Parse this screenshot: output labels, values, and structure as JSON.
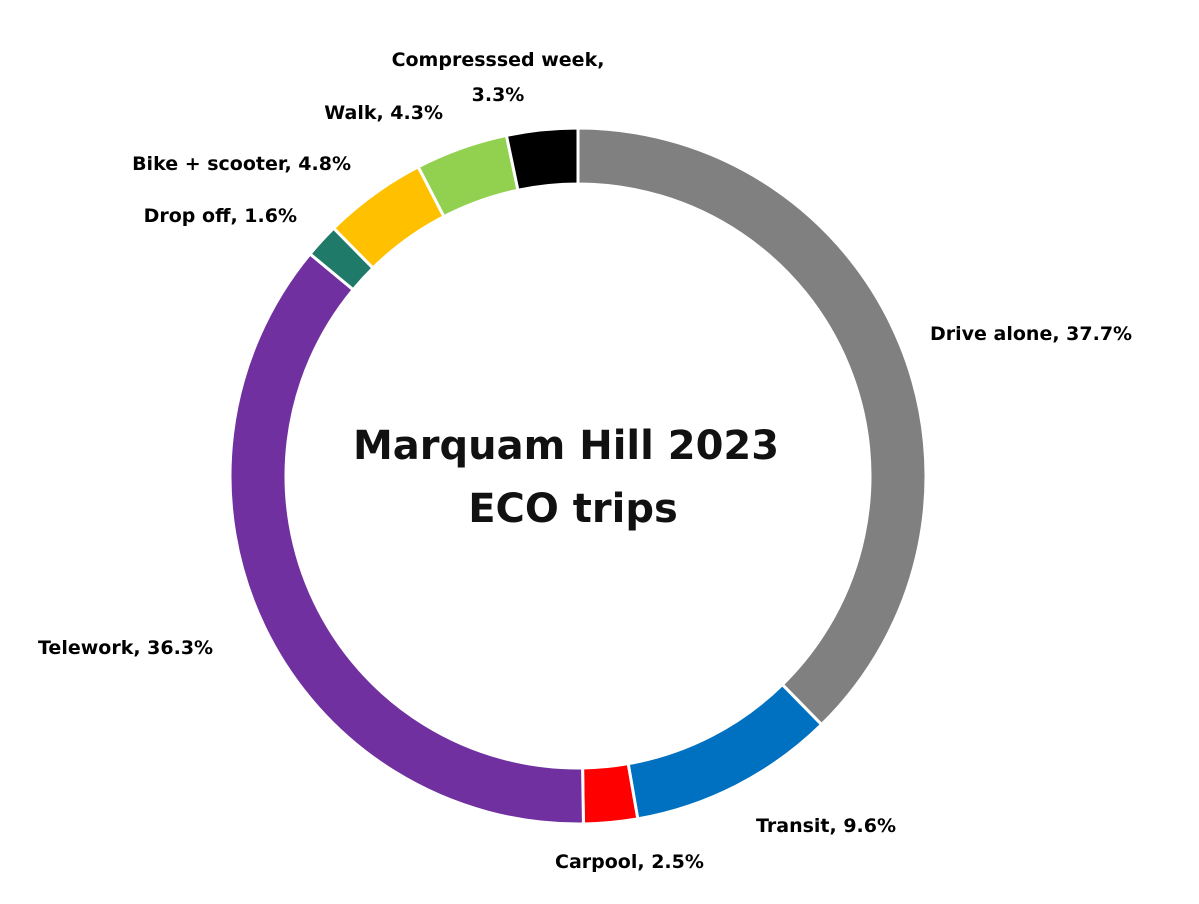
{
  "chart_data": {
    "type": "pie",
    "donut": true,
    "title_lines": [
      "Marquam Hill 2023",
      "ECO trips"
    ],
    "slices": [
      {
        "name": "Drive alone",
        "label_lines": [
          "Drive alone, 37.7%"
        ],
        "value": 37.7,
        "color": "#808080"
      },
      {
        "name": "Transit",
        "label_lines": [
          "Transit, 9.6%"
        ],
        "value": 9.6,
        "color": "#0070C0"
      },
      {
        "name": "Carpool",
        "label_lines": [
          "Carpool, 2.5%"
        ],
        "value": 2.5,
        "color": "#FF0000"
      },
      {
        "name": "Telework",
        "label_lines": [
          "Telework, 36.3%"
        ],
        "value": 36.3,
        "color": "#7030A0"
      },
      {
        "name": "Drop off",
        "label_lines": [
          "Drop off, 1.6%"
        ],
        "value": 1.6,
        "color": "#1F7A6A"
      },
      {
        "name": "Bike + scooter",
        "label_lines": [
          "Bike + scooter, 4.8%"
        ],
        "value": 4.8,
        "color": "#FFC000"
      },
      {
        "name": "Walk",
        "label_lines": [
          "Walk, 4.3%"
        ],
        "value": 4.3,
        "color": "#92D050"
      },
      {
        "name": "Compresssed week",
        "label_lines": [
          "Compresssed week,",
          "3.3%"
        ],
        "value": 3.3,
        "color": "#000000"
      }
    ],
    "legend": "none"
  }
}
